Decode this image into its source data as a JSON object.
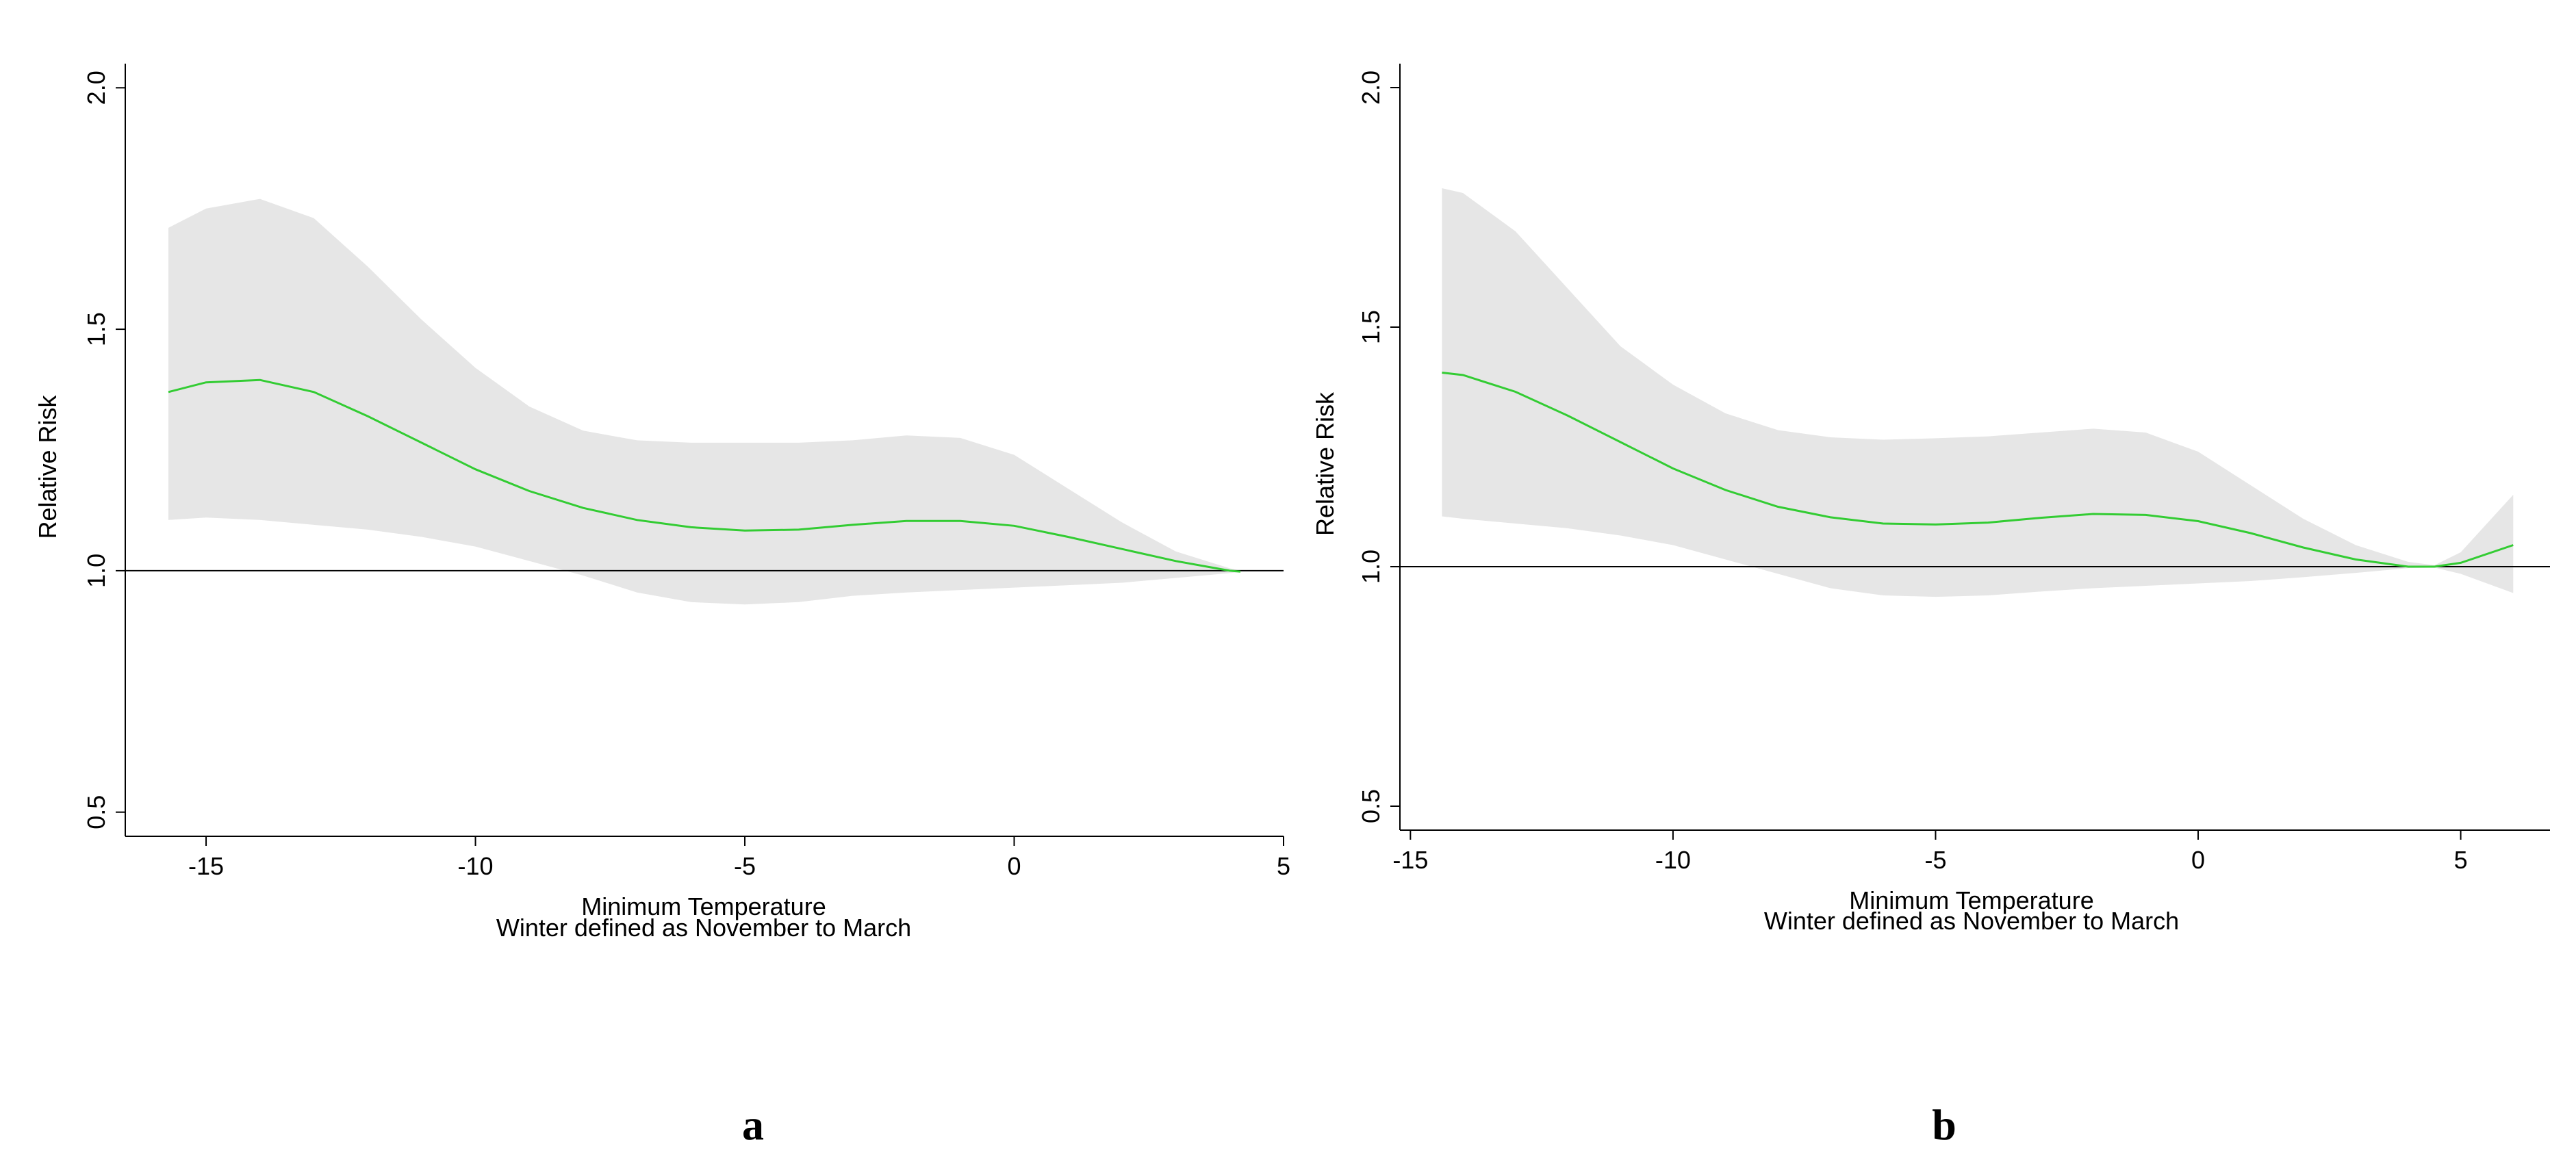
{
  "colors": {
    "line": "#33cc33",
    "band": "#e6e6e6",
    "axis": "#000000",
    "reference_line": "#000000"
  },
  "chart_data": [
    {
      "panel_label": "a",
      "type": "line",
      "xlabel": "Minimum Temperature",
      "xlabel_sub": "Winter defined as November to March",
      "ylabel": "Relative Risk",
      "xlim": [
        -16.5,
        5
      ],
      "ylim": [
        0.45,
        2.05
      ],
      "xticks": [
        -15,
        -10,
        -5,
        0,
        5
      ],
      "xtick_labels": [
        "-15",
        "-10",
        "-5",
        "0",
        "5"
      ],
      "yticks": [
        0.5,
        1.0,
        1.5,
        2.0
      ],
      "ytick_labels": [
        "0.5",
        "1.0",
        "1.5",
        "2.0"
      ],
      "reference_y": 1.0,
      "x": [
        -15.7,
        -15,
        -14,
        -13,
        -12,
        -11,
        -10,
        -9,
        -8,
        -7,
        -6,
        -5,
        -4,
        -3,
        -2,
        -1,
        0,
        1,
        2,
        3,
        4,
        4.2
      ],
      "estimate": [
        1.37,
        1.39,
        1.395,
        1.37,
        1.32,
        1.265,
        1.21,
        1.165,
        1.13,
        1.105,
        1.09,
        1.083,
        1.085,
        1.095,
        1.103,
        1.103,
        1.093,
        1.07,
        1.045,
        1.02,
        1.0,
        0.998
      ],
      "upper": [
        1.71,
        1.75,
        1.77,
        1.73,
        1.63,
        1.52,
        1.42,
        1.34,
        1.29,
        1.27,
        1.265,
        1.265,
        1.265,
        1.27,
        1.28,
        1.275,
        1.24,
        1.17,
        1.1,
        1.04,
        1.005,
        1.0
      ],
      "lower": [
        1.105,
        1.11,
        1.105,
        1.095,
        1.085,
        1.07,
        1.05,
        1.02,
        0.99,
        0.955,
        0.935,
        0.93,
        0.935,
        0.948,
        0.955,
        0.96,
        0.965,
        0.97,
        0.975,
        0.985,
        0.995,
        0.997
      ]
    },
    {
      "panel_label": "b",
      "type": "line",
      "xlabel": "Minimum Temperature",
      "xlabel_sub": "Winter defined as November to March",
      "ylabel": "Relative Risk",
      "xlim": [
        -15.2,
        6.7
      ],
      "ylim": [
        0.45,
        2.05
      ],
      "xticks": [
        -15,
        -10,
        -5,
        0,
        5
      ],
      "xtick_labels": [
        "-15",
        "-10",
        "-5",
        "0",
        "5"
      ],
      "yticks": [
        0.5,
        1.0,
        1.5,
        2.0
      ],
      "ytick_labels": [
        "0.5",
        "1.0",
        "1.5",
        "2.0"
      ],
      "reference_y": 1.0,
      "x": [
        -14.4,
        -14,
        -13,
        -12,
        -11,
        -10,
        -9,
        -8,
        -7,
        -6,
        -5,
        -4,
        -3,
        -2,
        -1,
        0,
        1,
        2,
        3,
        4,
        4.5,
        5,
        6
      ],
      "estimate": [
        1.405,
        1.4,
        1.365,
        1.315,
        1.26,
        1.205,
        1.16,
        1.125,
        1.103,
        1.09,
        1.088,
        1.092,
        1.102,
        1.11,
        1.108,
        1.095,
        1.07,
        1.04,
        1.015,
        1.0,
        1.0,
        1.008,
        1.045
      ],
      "upper": [
        1.79,
        1.78,
        1.7,
        1.58,
        1.46,
        1.38,
        1.32,
        1.285,
        1.27,
        1.265,
        1.268,
        1.272,
        1.28,
        1.288,
        1.28,
        1.24,
        1.17,
        1.1,
        1.045,
        1.01,
        1.003,
        1.03,
        1.15
      ],
      "lower": [
        1.105,
        1.1,
        1.09,
        1.08,
        1.065,
        1.045,
        1.015,
        0.985,
        0.955,
        0.94,
        0.937,
        0.94,
        0.948,
        0.955,
        0.96,
        0.965,
        0.97,
        0.978,
        0.987,
        0.997,
        0.998,
        0.985,
        0.945
      ]
    }
  ]
}
